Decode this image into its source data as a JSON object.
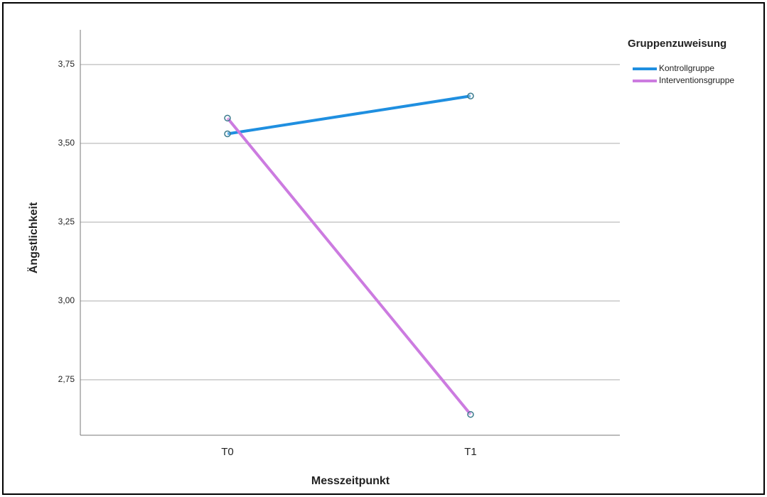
{
  "chart_data": {
    "type": "line",
    "x_label": "Messzeitpunkt",
    "y_label": "Ängstlichkeit",
    "legend_title": "Gruppenzuweisung",
    "categories": [
      "T0",
      "T1"
    ],
    "series": [
      {
        "name": "Kontrollgruppe",
        "color": "#1f8fe0",
        "values": [
          3.53,
          3.65
        ]
      },
      {
        "name": "Interventionsgruppe",
        "color": "#cc7be0",
        "values": [
          3.58,
          2.64
        ]
      }
    ],
    "ylim": [
      2.574,
      3.86
    ],
    "yticks": [
      {
        "value": 2.75,
        "label": "2,75"
      },
      {
        "value": 3.0,
        "label": "3,00"
      },
      {
        "value": 3.25,
        "label": "3,25"
      },
      {
        "value": 3.5,
        "label": "3,50"
      },
      {
        "value": 3.75,
        "label": "3,75"
      }
    ],
    "grid": true,
    "legend": "upper right"
  }
}
